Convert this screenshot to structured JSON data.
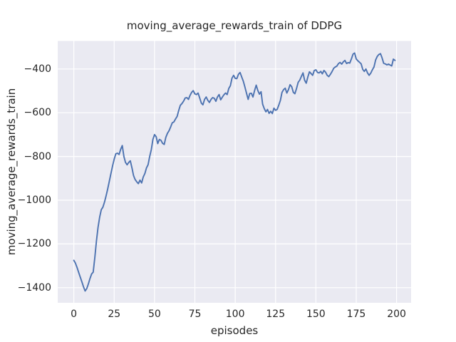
{
  "chart_data": {
    "type": "line",
    "title": "moving_average_rewards_train of DDPG",
    "xlabel": "episodes",
    "ylabel": "moving_average_rewards_train",
    "x_ticks": [
      0,
      25,
      50,
      75,
      100,
      125,
      150,
      175,
      200
    ],
    "y_ticks": [
      -400,
      -600,
      -800,
      -1000,
      -1200,
      -1400
    ],
    "xlim": [
      -10,
      209
    ],
    "ylim": [
      -1469,
      -272
    ],
    "grid": true,
    "legend": "none",
    "series": [
      {
        "name": "moving_average_rewards_train",
        "x_start": 0,
        "x_step": 1,
        "values": [
          -1275,
          -1288,
          -1308,
          -1330,
          -1352,
          -1374,
          -1396,
          -1415,
          -1404,
          -1383,
          -1358,
          -1337,
          -1329,
          -1262,
          -1185,
          -1124,
          -1077,
          -1043,
          -1032,
          -1008,
          -980,
          -948,
          -912,
          -878,
          -843,
          -812,
          -788,
          -785,
          -791,
          -768,
          -750,
          -800,
          -827,
          -838,
          -827,
          -820,
          -852,
          -887,
          -906,
          -916,
          -924,
          -908,
          -921,
          -894,
          -878,
          -852,
          -838,
          -800,
          -768,
          -722,
          -700,
          -710,
          -741,
          -722,
          -726,
          -740,
          -745,
          -713,
          -694,
          -682,
          -665,
          -646,
          -642,
          -629,
          -617,
          -589,
          -566,
          -558,
          -547,
          -533,
          -531,
          -539,
          -521,
          -507,
          -499,
          -514,
          -517,
          -510,
          -533,
          -556,
          -564,
          -539,
          -528,
          -543,
          -553,
          -539,
          -531,
          -534,
          -548,
          -528,
          -517,
          -541,
          -529,
          -518,
          -510,
          -517,
          -489,
          -477,
          -442,
          -429,
          -443,
          -444,
          -424,
          -416,
          -436,
          -456,
          -482,
          -511,
          -539,
          -512,
          -511,
          -528,
          -499,
          -474,
          -498,
          -515,
          -504,
          -561,
          -581,
          -596,
          -585,
          -603,
          -593,
          -604,
          -579,
          -589,
          -585,
          -565,
          -544,
          -507,
          -494,
          -488,
          -510,
          -494,
          -472,
          -481,
          -507,
          -513,
          -489,
          -461,
          -451,
          -434,
          -418,
          -451,
          -465,
          -436,
          -413,
          -421,
          -429,
          -407,
          -404,
          -416,
          -418,
          -411,
          -422,
          -407,
          -415,
          -429,
          -435,
          -424,
          -412,
          -397,
          -391,
          -387,
          -375,
          -370,
          -378,
          -367,
          -361,
          -375,
          -371,
          -373,
          -354,
          -332,
          -327,
          -354,
          -363,
          -369,
          -376,
          -402,
          -411,
          -400,
          -418,
          -429,
          -419,
          -404,
          -391,
          -359,
          -343,
          -334,
          -330,
          -349,
          -374,
          -377,
          -381,
          -378,
          -382,
          -386,
          -355,
          -361
        ]
      }
    ],
    "colors": {
      "line": "#4C72B0",
      "axes_background": "#EAEAF2",
      "grid": "#FFFFFF",
      "text": "#262626",
      "figure_background": "#FFFFFF"
    }
  }
}
